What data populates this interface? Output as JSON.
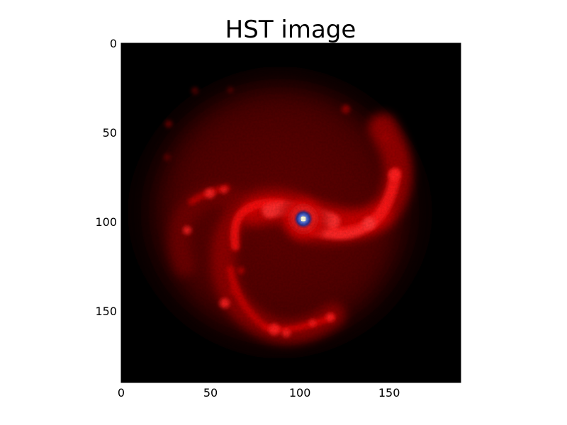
{
  "title": "HST image",
  "image": {
    "kind": "grand-design spiral galaxy, false-color red",
    "colormap": "black-red with white-blue saturated core"
  },
  "axes": {
    "x_ticks": [
      "0",
      "50",
      "100",
      "150"
    ],
    "y_ticks": [
      "0",
      "50",
      "100",
      "150"
    ],
    "x_range": [
      0,
      190
    ],
    "y_range": [
      0,
      190
    ],
    "y_inverted": true
  },
  "colors": {
    "background": "#000000",
    "arm_glow": "#ff2020",
    "core": "#3040a0"
  }
}
